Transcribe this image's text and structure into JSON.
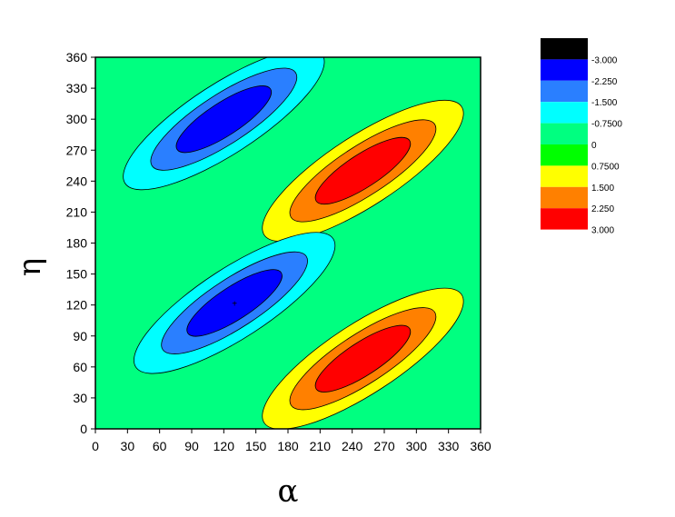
{
  "chart_data": {
    "type": "contour",
    "xlabel": "α",
    "ylabel": "η",
    "xlim": [
      0,
      360
    ],
    "ylim": [
      0,
      360
    ],
    "xticks": [
      "0",
      "30",
      "60",
      "90",
      "120",
      "150",
      "180",
      "210",
      "240",
      "270",
      "300",
      "330",
      "360"
    ],
    "yticks": [
      "0",
      "30",
      "60",
      "90",
      "120",
      "150",
      "180",
      "210",
      "240",
      "270",
      "300",
      "330",
      "360"
    ],
    "levels": [
      -3.0,
      -2.25,
      -1.5,
      -0.75,
      0,
      0.75,
      1.5,
      2.25,
      3.0
    ],
    "colorbar": {
      "labels": [
        "-3.000",
        "-2.250",
        "-1.500",
        "-0.7500",
        "0",
        "0.7500",
        "1.500",
        "2.250",
        "3.000"
      ],
      "colors": [
        "#000000",
        "#0000ff",
        "#2a7fff",
        "#00ffff",
        "#00ff80",
        "#00ff00",
        "#ffff00",
        "#ff8000",
        "#ff0000"
      ]
    },
    "extrema": [
      {
        "kind": "min",
        "alpha": 120,
        "eta": 300
      },
      {
        "kind": "max",
        "alpha": 250,
        "eta": 250
      },
      {
        "kind": "min",
        "alpha": 130,
        "eta": 122
      },
      {
        "kind": "max",
        "alpha": 250,
        "eta": 68
      }
    ],
    "grid": false,
    "legend": "right"
  }
}
